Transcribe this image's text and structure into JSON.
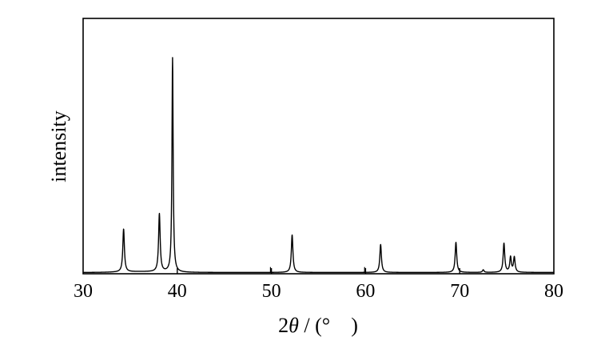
{
  "chart_data": {
    "type": "line",
    "title": "",
    "xlabel_parts": [
      "2",
      "θ",
      " / (° )"
    ],
    "ylabel": "intensity",
    "xlim": [
      30,
      80
    ],
    "ylim": [
      0,
      100
    ],
    "xticks": [
      30,
      40,
      50,
      60,
      70,
      80
    ],
    "yticks_visible": false,
    "grid": false,
    "legend": "none",
    "line_color": "#000000",
    "baseline": 0.6,
    "peaks": [
      {
        "x": 34.3,
        "height": 20
      },
      {
        "x": 38.1,
        "height": 27
      },
      {
        "x": 39.5,
        "height": 100
      },
      {
        "x": 52.2,
        "height": 17.5
      },
      {
        "x": 61.6,
        "height": 13
      },
      {
        "x": 69.6,
        "height": 14
      },
      {
        "x": 72.5,
        "height": 1.2
      },
      {
        "x": 74.7,
        "height": 13.5
      },
      {
        "x": 75.4,
        "height": 7
      },
      {
        "x": 75.8,
        "height": 7
      }
    ],
    "spikes": [
      {
        "x": 49.9,
        "height": 2.5
      },
      {
        "x": 59.9,
        "height": 2.5
      }
    ]
  }
}
